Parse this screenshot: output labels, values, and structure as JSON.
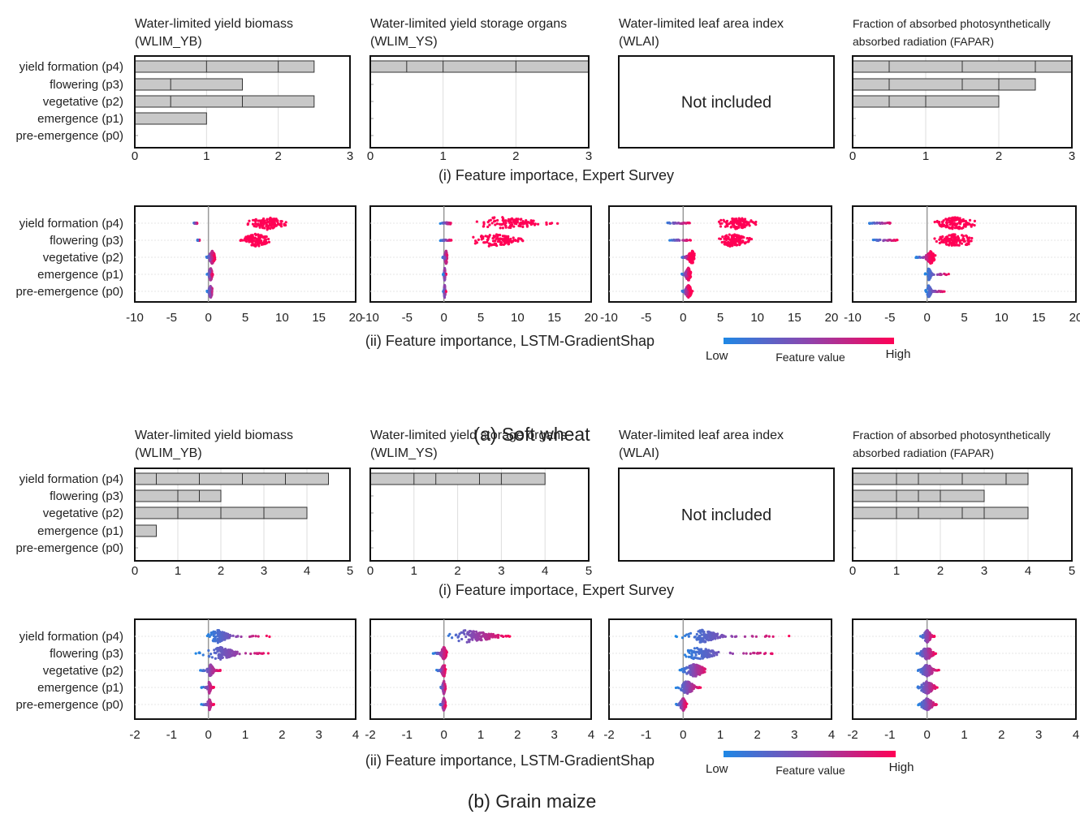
{
  "chart_data": [
    {
      "crop_label": "(a) Soft wheat",
      "panel_titles": [
        [
          "Water-limited yield biomass",
          "(WLIM_YB)"
        ],
        [
          "Water-limited yield storage organs",
          "(WLIM_YS)"
        ],
        [
          "Water-limited leaf area index",
          "(WLAI)"
        ],
        [
          "Fraction of absorbed photosynthetically",
          "absorbed radiation (FAPAR)"
        ]
      ],
      "stages": [
        "yield formation (p4)",
        "flowering (p3)",
        "vegetative (p2)",
        "emergence (p1)",
        "pre-emergence (p0)"
      ],
      "survey": {
        "type": "bar",
        "caption": "(i)  Feature importace, Expert Survey",
        "xlim": [
          0,
          3
        ],
        "ticks": [
          "0",
          "1",
          "2",
          "3"
        ],
        "not_included": "Not included",
        "panels": [
          {
            "values": [
              2.5,
              1.5,
              2.5,
              1.0,
              0
            ],
            "segments": [
              [
                0,
                1,
                2,
                2.5
              ],
              [
                0,
                0.5,
                1.5
              ],
              [
                0,
                0.5,
                1.5,
                2.5
              ],
              [
                0,
                1.0
              ],
              []
            ]
          },
          {
            "values": [
              3.0,
              0,
              0,
              0,
              0
            ],
            "segments": [
              [
                0,
                0.5,
                1,
                2,
                3
              ],
              [],
              [],
              [],
              []
            ]
          },
          null,
          {
            "values": [
              3.0,
              2.5,
              2.0,
              0,
              0
            ],
            "segments": [
              [
                0,
                0.5,
                1.5,
                2.5,
                3
              ],
              [
                0,
                0.5,
                1.5,
                2,
                2.5
              ],
              [
                0,
                0.5,
                1,
                2
              ],
              [],
              []
            ]
          }
        ]
      },
      "shap": {
        "type": "scatter",
        "caption": "(ii)  Feature importance, LSTM-GradientShap",
        "xlim": [
          -10,
          20
        ],
        "ticks": [
          "-10",
          "-5",
          "0",
          "5",
          "10",
          "15",
          "20"
        ],
        "panels": [
          [
            [
              -2,
              -1.5,
              5,
              11,
              8
            ],
            [
              -1.5,
              -1.2,
              4,
              9,
              6.5
            ],
            [
              -0.3,
              0.8,
              0,
              1,
              0.5
            ],
            [
              -0.2,
              0.6,
              0,
              0.6,
              0.3
            ],
            [
              -0.2,
              0.7,
              0,
              0.6,
              0.3
            ]
          ],
          [
            [
              -0.5,
              1,
              3,
              16,
              7.5
            ],
            [
              -0.5,
              1,
              3,
              12,
              6.5
            ],
            [
              -0.2,
              0.5,
              0,
              0.5,
              0.3
            ],
            [
              -0.1,
              0.3,
              0,
              0.2,
              0.1
            ],
            [
              -0.1,
              0.3,
              0,
              0.2,
              0.1
            ]
          ],
          [
            [
              -2.5,
              1,
              4,
              10.5,
              7
            ],
            [
              -2,
              1,
              4,
              10,
              6.5
            ],
            [
              -0.3,
              0.8,
              0.3,
              1.8,
              1.2
            ],
            [
              -0.2,
              0.8,
              0.2,
              1.2,
              0.7
            ],
            [
              -0.2,
              0.8,
              0.2,
              1.3,
              0.7
            ]
          ],
          [
            [
              -8,
              -4.5,
              0,
              7.5,
              4
            ],
            [
              -7.5,
              -4,
              0,
              7.5,
              4
            ],
            [
              -1.5,
              0.5,
              -0.3,
              1.2,
              0.5
            ],
            [
              -0.3,
              3,
              0,
              0.8,
              0.2
            ],
            [
              -0.3,
              2.5,
              0,
              0.8,
              0.2
            ]
          ]
        ]
      },
      "legend": {
        "low": "Low",
        "title": "Feature value",
        "high": "High"
      }
    },
    {
      "crop_label": "(b) Grain maize",
      "panel_titles": [
        [
          "Water-limited yield biomass",
          "(WLIM_YB)"
        ],
        [
          "Water-limited yield storage organs",
          "(WLIM_YS)"
        ],
        [
          "Water-limited leaf area index",
          "(WLAI)"
        ],
        [
          "Fraction of absorbed photosynthetically",
          "absorbed radiation (FAPAR)"
        ]
      ],
      "stages": [
        "yield formation (p4)",
        "flowering (p3)",
        "vegetative (p2)",
        "emergence (p1)",
        "pre-emergence (p0)"
      ],
      "survey": {
        "type": "bar",
        "caption": "(i)  Feature importace, Expert Survey",
        "xlim": [
          0,
          5
        ],
        "ticks": [
          "0",
          "1",
          "2",
          "3",
          "4",
          "5"
        ],
        "not_included": "Not included",
        "panels": [
          {
            "values": [
              4.5,
              2.0,
              4.0,
              0.5,
              0
            ],
            "segments": [
              [
                0,
                0.5,
                1.5,
                2.5,
                3.5,
                4.5
              ],
              [
                0,
                1,
                1.5,
                2
              ],
              [
                0,
                1,
                2,
                3,
                4
              ],
              [
                0,
                0.5
              ],
              []
            ]
          },
          {
            "values": [
              4.0,
              0,
              0,
              0,
              0
            ],
            "segments": [
              [
                0,
                1,
                1.5,
                2.5,
                3,
                4
              ],
              [],
              [],
              [],
              []
            ]
          },
          null,
          {
            "values": [
              4.0,
              3.0,
              4.0,
              0,
              0
            ],
            "segments": [
              [
                0,
                1,
                1.5,
                2.5,
                3.5,
                4
              ],
              [
                0,
                1,
                1.5,
                2,
                3
              ],
              [
                0,
                1,
                1.5,
                2.5,
                3,
                4
              ],
              [],
              []
            ]
          }
        ]
      },
      "shap": {
        "type": "scatter",
        "caption": "(ii) Feature importance, LSTM-GradientShap",
        "xlim": [
          -2,
          4
        ],
        "ticks": [
          "-2",
          "-1",
          "0",
          "1",
          "2",
          "3",
          "4"
        ],
        "panels": [
          [
            [
              -0.1,
              1.7,
              0,
              0.7,
              0.25
            ],
            [
              -0.35,
              1.75,
              0,
              1.0,
              0.3
            ],
            [
              -0.25,
              0.35,
              0,
              0.2,
              0.05
            ],
            [
              -0.2,
              0.15,
              0,
              0.1,
              0.02
            ],
            [
              -0.2,
              0.15,
              0,
              0.1,
              0.02
            ]
          ],
          [
            [
              -0.1,
              1.8,
              0,
              1.8,
              0.6
            ],
            [
              -0.3,
              0.1,
              -0.1,
              0.1,
              0
            ],
            [
              -0.2,
              0.05,
              -0.1,
              0.05,
              0
            ],
            [
              -0.1,
              0.05,
              -0.05,
              0.05,
              0
            ],
            [
              -0.1,
              0.05,
              -0.05,
              0.05,
              0
            ]
          ],
          [
            [
              -0.2,
              2.9,
              0.1,
              1.2,
              0.5
            ],
            [
              -0.1,
              2.7,
              0,
              1.1,
              0.4
            ],
            [
              -0.1,
              0.7,
              0,
              0.7,
              0.3
            ],
            [
              -0.2,
              0.5,
              -0.1,
              0.4,
              0.1
            ],
            [
              -0.2,
              0.1,
              -0.1,
              0.1,
              0
            ]
          ],
          [
            [
              -0.2,
              0.2,
              -0.1,
              0.15,
              0
            ],
            [
              -0.3,
              0.25,
              -0.2,
              0.2,
              0
            ],
            [
              -0.3,
              0.35,
              -0.2,
              0.2,
              0
            ],
            [
              -0.3,
              0.3,
              -0.2,
              0.25,
              0
            ],
            [
              -0.25,
              0.3,
              -0.2,
              0.2,
              0
            ]
          ]
        ]
      },
      "legend": {
        "low": "Low",
        "title": "Feature value",
        "high": "High"
      }
    }
  ]
}
